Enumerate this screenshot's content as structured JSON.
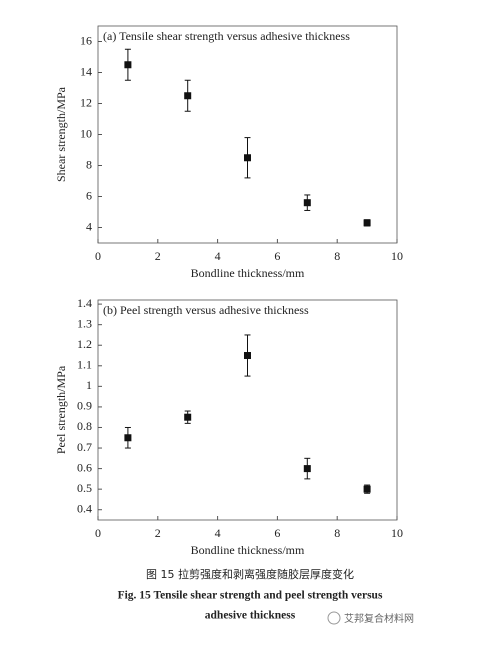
{
  "chart_data": [
    {
      "type": "scatter",
      "title": "(a) Tensile shear strength versus adhesive thickness",
      "x_label": "Bondline thickness/mm",
      "y_label": "Shear strength/MPa",
      "xlim": [
        0,
        10
      ],
      "xticks": [
        0,
        2,
        4,
        6,
        8,
        10
      ],
      "ylim": [
        3,
        17
      ],
      "yticks": [
        4,
        6,
        8,
        10,
        12,
        14,
        16
      ],
      "series": [
        {
          "color": "#111111",
          "x": [
            1,
            3,
            5,
            7,
            9
          ],
          "values": [
            14.5,
            12.5,
            8.5,
            5.6,
            4.3
          ],
          "errors": [
            1,
            1,
            1.3,
            0.5,
            0.2
          ]
        }
      ]
    },
    {
      "type": "scatter",
      "title": "(b) Peel strength versus adhesive thickness",
      "x_label": "Bondline thickness/mm",
      "y_label": "Peel strength/MPa",
      "xlim": [
        0,
        10
      ],
      "xticks": [
        0,
        2,
        4,
        6,
        8,
        10
      ],
      "ylim": [
        0.35,
        1.42
      ],
      "yticks": [
        0.4,
        0.5,
        0.6,
        0.7,
        0.8,
        0.9,
        1.0,
        1.1,
        1.2,
        1.3,
        1.4
      ],
      "series": [
        {
          "color": "#111111",
          "x": [
            1,
            3,
            5,
            7,
            9
          ],
          "values": [
            0.75,
            0.85,
            1.15,
            0.6,
            0.5
          ],
          "errors": [
            0.05,
            0.03,
            0.1,
            0.05,
            0.02
          ]
        }
      ]
    }
  ],
  "caption_cn": "图 15  拉剪强度和剥离强度随胶层厚度变化",
  "caption_en": [
    "Fig. 15   Tensile shear strength and peel strength versus",
    "adhesive thickness"
  ],
  "watermark": "艾邦复合材料网"
}
